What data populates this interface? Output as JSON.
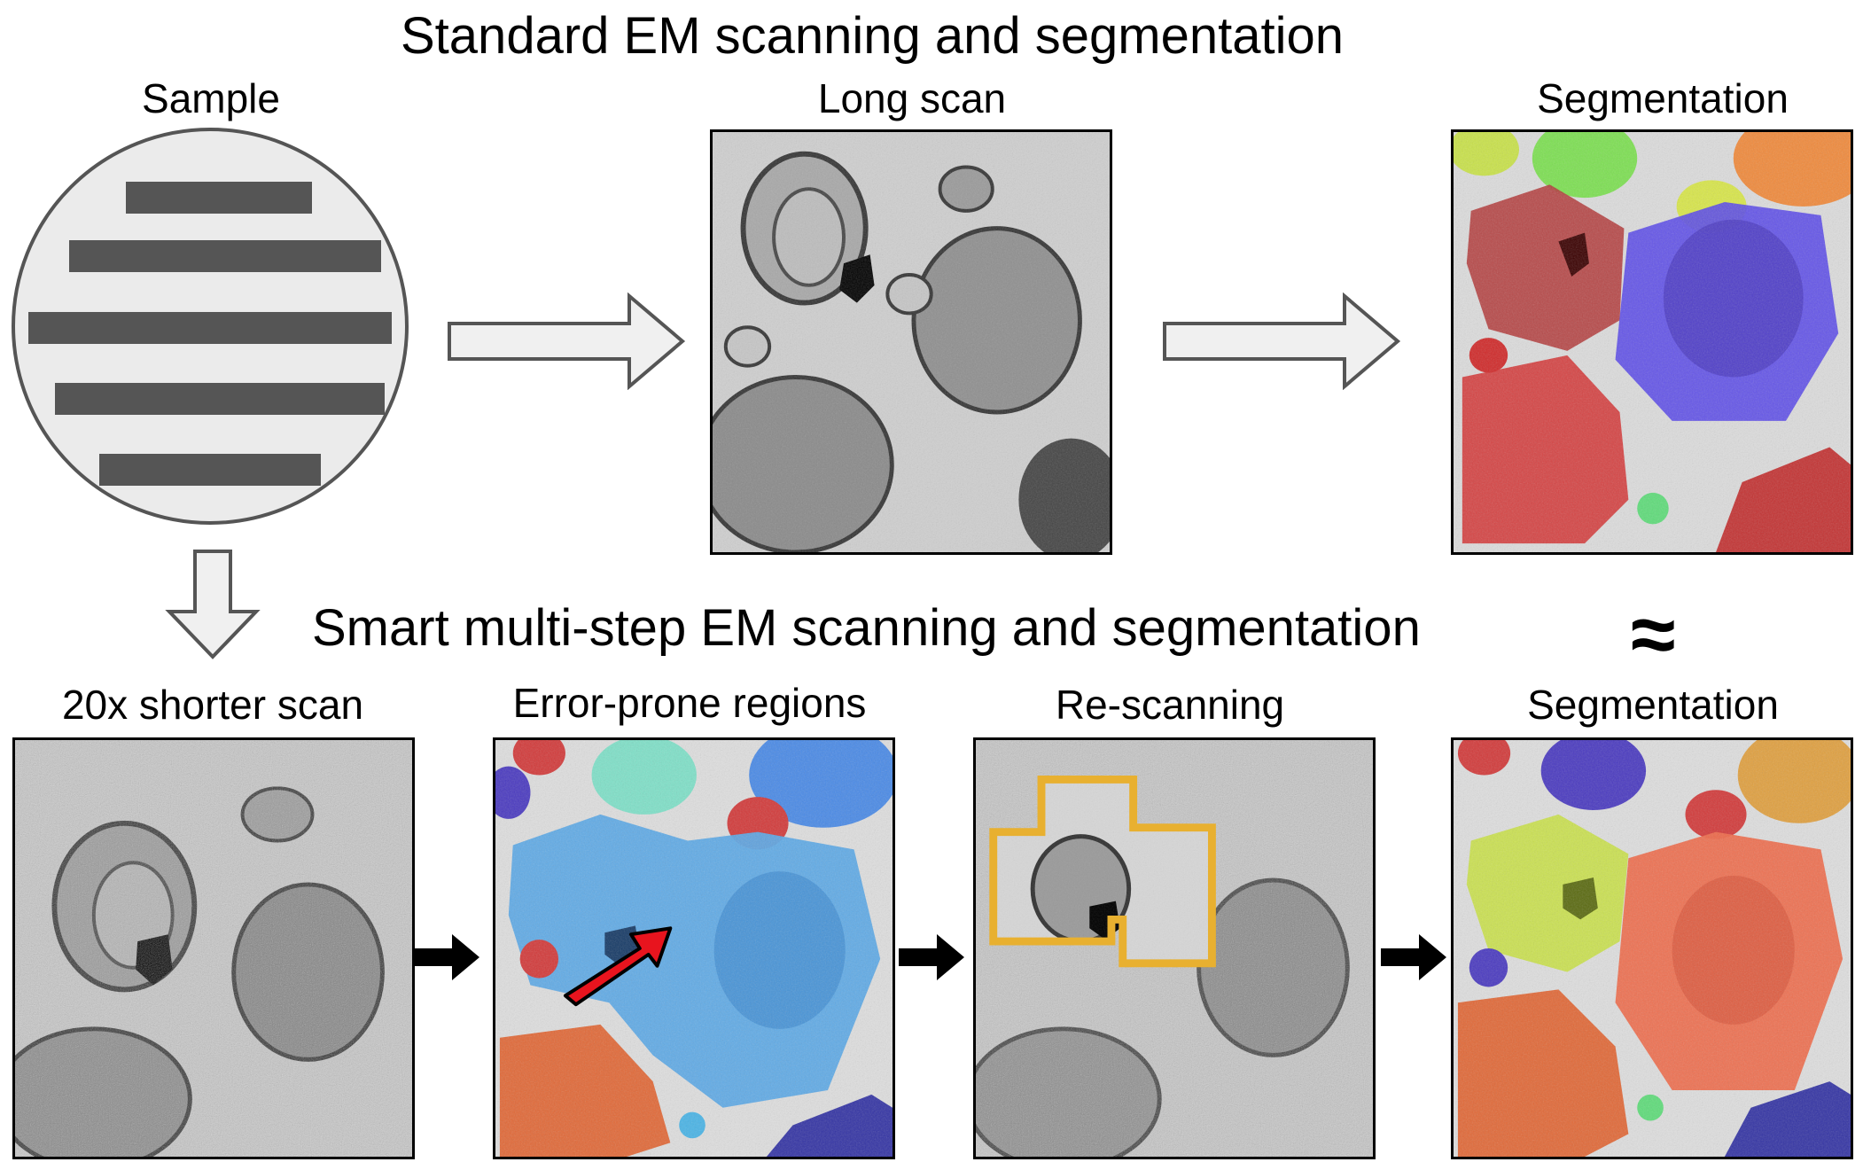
{
  "headings": {
    "top": "Standard EM scanning and segmentation",
    "middle": "Smart multi-step EM scanning and segmentation"
  },
  "labels": {
    "sample": "Sample",
    "long_scan": "Long scan",
    "segmentation_top": "Segmentation",
    "short_scan": "20x shorter scan",
    "error_prone": "Error-prone regions",
    "rescanning": "Re-scanning",
    "segmentation_bottom": "Segmentation"
  },
  "approx_symbol": "≈",
  "colors": {
    "sample_fill": "#ebebeb",
    "sample_bars": "#555555",
    "hollow_arrow_fill": "#f0f0f0",
    "hollow_arrow_stroke": "#555555",
    "error_arrow": "#e8141e",
    "rescan_outline": "#e8b030"
  },
  "icons": {
    "flow_arrows": "hollow-arrow-icon",
    "step_arrows": "black-arrow-icon",
    "error_pointer": "red-arrow-icon"
  }
}
